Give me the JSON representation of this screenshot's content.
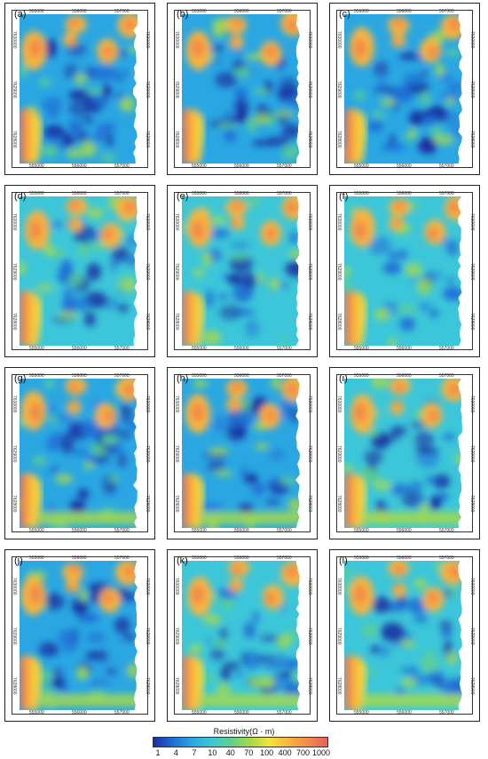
{
  "panels": [
    {
      "label": "(a)",
      "seed": 11,
      "low": 0.62
    },
    {
      "label": "(b)",
      "seed": 23,
      "low": 0.7
    },
    {
      "label": "(c)",
      "seed": 37,
      "low": 0.5
    },
    {
      "label": "(d)",
      "seed": 41,
      "low": 0.4
    },
    {
      "label": "(e)",
      "seed": 53,
      "low": 0.28
    },
    {
      "label": "(f)",
      "seed": 67,
      "low": 0.15
    },
    {
      "label": "(g)",
      "seed": 71,
      "low": 0.55
    },
    {
      "label": "(h)",
      "seed": 83,
      "low": 0.5
    },
    {
      "label": "(i)",
      "seed": 97,
      "low": 0.42
    },
    {
      "label": "(j)",
      "seed": 101,
      "low": 0.52
    },
    {
      "label": "(k)",
      "seed": 113,
      "low": 0.45
    },
    {
      "label": "(l)",
      "seed": 127,
      "low": 0.38
    }
  ],
  "axes": {
    "x_ticks": [
      "555000",
      "556000",
      "557000"
    ],
    "y_ticks": [
      "7630000",
      "7629000",
      "7628000"
    ]
  },
  "colorbar": {
    "title": "Resistivity(Ω · m)",
    "ticks": [
      "1",
      "4",
      "7",
      "10",
      "40",
      "70",
      "100",
      "400",
      "700",
      "1000"
    ],
    "colors": [
      "#1a2f9e",
      "#1f6fd6",
      "#2aa7e2",
      "#3cc6d9",
      "#5fd08e",
      "#a6d94a",
      "#f3e43a",
      "#f8b43c",
      "#f28a4a",
      "#e8605c"
    ]
  },
  "chart_data": {
    "type": "heatmap",
    "title": "",
    "panels": [
      "(a)",
      "(b)",
      "(c)",
      "(d)",
      "(e)",
      "(f)",
      "(g)",
      "(h)",
      "(i)",
      "(j)",
      "(k)",
      "(l)"
    ],
    "x_ticks": [
      555000,
      556000,
      557000
    ],
    "y_ticks": [
      7630000,
      7629000,
      7628000
    ],
    "colorbar_label": "Resistivity(Ω · m)",
    "colorbar_ticks": [
      1,
      4,
      7,
      10,
      40,
      70,
      100,
      400,
      700,
      1000
    ],
    "colorbar_scale": "log",
    "colorbar_range": [
      1,
      1000
    ]
  }
}
